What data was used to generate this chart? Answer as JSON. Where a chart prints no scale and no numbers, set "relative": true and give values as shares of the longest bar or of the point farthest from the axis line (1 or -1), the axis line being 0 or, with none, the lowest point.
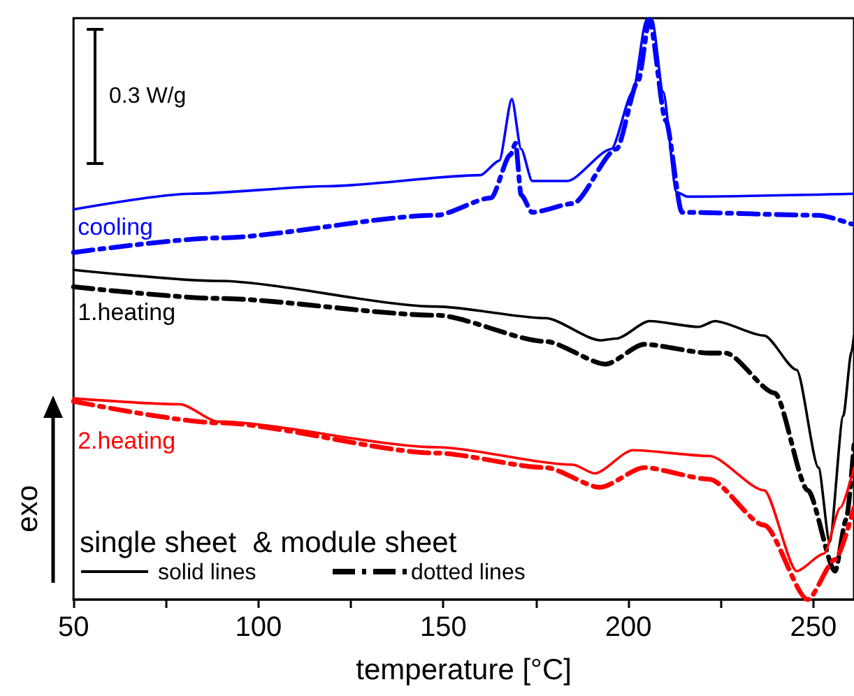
{
  "chart_data": {
    "type": "line",
    "relative": true,
    "xlabel": "temperature [°C]",
    "ylabel": "exo",
    "xlim": [
      50,
      261
    ],
    "xticks": [
      50,
      {
        "value": 75,
        "label": null
      },
      100,
      {
        "value": 125,
        "label": null
      },
      150,
      {
        "value": 175,
        "label": null
      },
      200,
      {
        "value": 225,
        "label": null
      },
      250
    ],
    "tick_labels": "x",
    "grid": false,
    "legend": false,
    "marker": "none",
    "annotations": [
      "0.3 W/g",
      "single sheet  & module sheet",
      "solid lines",
      "dotted lines"
    ],
    "series": [
      {
        "name": "cooling",
        "color": "#0000ff",
        "line_style": "solid",
        "x": [
          50,
          81.7,
          118.6,
          160,
          165.1,
          168.5,
          171,
          174,
          183.5,
          195.4,
          201.2,
          204.9,
          205.7,
          206.4,
          209.4,
          213,
          216,
          261
        ],
        "values": [
          0.671,
          0.698,
          0.711,
          0.73,
          0.755,
          0.861,
          0.775,
          0.72,
          0.72,
          0.775,
          0.873,
          0.997,
          1,
          0.997,
          0.873,
          0.701,
          0.693,
          0.698
        ]
      },
      {
        "color": "#0000ff",
        "line_style": "dashed",
        "x": [
          50,
          89.1,
          148.1,
          162.9,
          168.1,
          169.5,
          171,
          174,
          185,
          196.8,
          202.7,
          205.7,
          210.1,
          214.5,
          251.4,
          260.3
        ],
        "values": [
          0.597,
          0.622,
          0.661,
          0.691,
          0.765,
          0.785,
          0.696,
          0.666,
          0.681,
          0.775,
          0.893,
          0.997,
          0.824,
          0.666,
          0.661,
          0.646
        ]
      },
      {
        "name": "1.heating",
        "color": "#000000",
        "line_style": "solid",
        "x": [
          50,
          89.1,
          148.1,
          177.6,
          192.4,
          196.8,
          205.7,
          219,
          223.4,
          236.7,
          245.5,
          251.4,
          254.4,
          258.1,
          260.3,
          261
        ],
        "values": [
          0.567,
          0.548,
          0.504,
          0.484,
          0.446,
          0.449,
          0.479,
          0.469,
          0.479,
          0.454,
          0.395,
          0.227,
          0.099,
          0.316,
          0.425,
          0.454
        ]
      },
      {
        "color": "#000000",
        "line_style": "dashed",
        "x": [
          50,
          89.1,
          148.1,
          177.6,
          193.9,
          204.2,
          221.9,
          226.3,
          239.6,
          248.5,
          255.9,
          258.9,
          261
        ],
        "values": [
          0.538,
          0.518,
          0.489,
          0.444,
          0.405,
          0.439,
          0.424,
          0.424,
          0.355,
          0.188,
          0.049,
          0.138,
          0.267
        ]
      },
      {
        "name": "2.heating",
        "color": "#ff0000",
        "line_style": "solid",
        "x": [
          50,
          78.8,
          89.1,
          148.1,
          185,
          190.9,
          201.2,
          221.9,
          236.7,
          245.5,
          252.9,
          257.3,
          261
        ],
        "values": [
          0.346,
          0.336,
          0.306,
          0.262,
          0.232,
          0.217,
          0.257,
          0.247,
          0.188,
          0.049,
          0.079,
          0.158,
          0.227
        ]
      },
      {
        "color": "#ff0000",
        "line_style": "dashed",
        "x": [
          50,
          89.1,
          148.1,
          177.6,
          192.4,
          204.2,
          221.9,
          236.7,
          248.5,
          255.9,
          261
        ],
        "values": [
          0.341,
          0.304,
          0.252,
          0.227,
          0.193,
          0.227,
          0.207,
          0.128,
          0,
          0.069,
          0.158
        ]
      }
    ]
  }
}
